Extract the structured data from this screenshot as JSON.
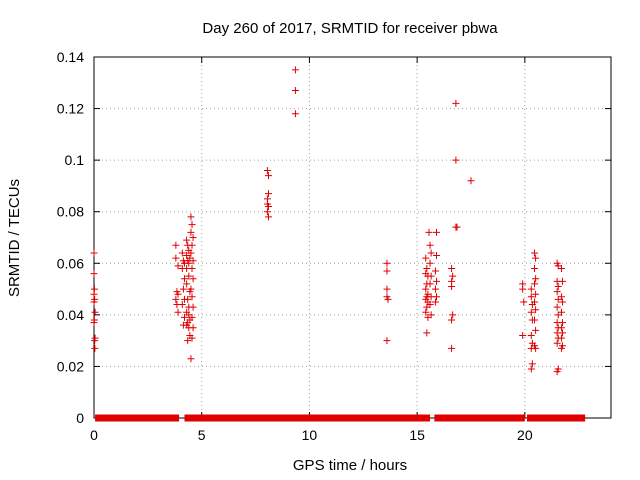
{
  "chart_data": {
    "type": "scatter",
    "title": "Day 260 of 2017, SRMTID for receiver pbwa",
    "xlabel": "GPS time / hours",
    "ylabel": "SRMTID / TECUs",
    "xlim": [
      0,
      24
    ],
    "ylim": [
      0,
      0.14
    ],
    "x_ticks": [
      0,
      5,
      10,
      15,
      20
    ],
    "y_ticks": [
      0,
      0.02,
      0.04,
      0.06,
      0.08,
      0.1,
      0.12,
      0.14
    ],
    "x_tick_labels": [
      "0",
      "5",
      "10",
      "15",
      "20"
    ],
    "y_tick_labels": [
      "0",
      "0.02",
      "0.04",
      "0.06",
      "0.08",
      "0.1",
      "0.12",
      "0.14"
    ],
    "grid": true,
    "marker": "plus",
    "color": "#e00000",
    "zero_line_segments": [
      [
        0.05,
        3.95
      ],
      [
        4.2,
        15.6
      ],
      [
        15.8,
        20.0
      ],
      [
        20.1,
        22.8
      ]
    ],
    "series": [
      {
        "name": "SRMTID",
        "points": [
          [
            0.0,
            0.064
          ],
          [
            0.0,
            0.056
          ],
          [
            0.02,
            0.05
          ],
          [
            0.0,
            0.048
          ],
          [
            0.03,
            0.046
          ],
          [
            0.0,
            0.045
          ],
          [
            0.05,
            0.041
          ],
          [
            0.02,
            0.038
          ],
          [
            0.0,
            0.037
          ],
          [
            0.05,
            0.031
          ],
          [
            0.03,
            0.03
          ],
          [
            0.04,
            0.027
          ],
          [
            3.8,
            0.067
          ],
          [
            3.8,
            0.062
          ],
          [
            3.9,
            0.059
          ],
          [
            3.85,
            0.049
          ],
          [
            3.9,
            0.048
          ],
          [
            3.8,
            0.046
          ],
          [
            3.85,
            0.044
          ],
          [
            3.9,
            0.041
          ],
          [
            4.1,
            0.064
          ],
          [
            4.15,
            0.061
          ],
          [
            4.2,
            0.06
          ],
          [
            4.1,
            0.058
          ],
          [
            4.2,
            0.054
          ],
          [
            4.15,
            0.05
          ],
          [
            4.2,
            0.046
          ],
          [
            4.1,
            0.044
          ],
          [
            4.2,
            0.039
          ],
          [
            4.15,
            0.036
          ],
          [
            4.3,
            0.069
          ],
          [
            4.35,
            0.067
          ],
          [
            4.4,
            0.065
          ],
          [
            4.3,
            0.063
          ],
          [
            4.45,
            0.062
          ],
          [
            4.35,
            0.061
          ],
          [
            4.4,
            0.06
          ],
          [
            4.3,
            0.058
          ],
          [
            4.4,
            0.055
          ],
          [
            4.3,
            0.052
          ],
          [
            4.45,
            0.049
          ],
          [
            4.35,
            0.046
          ],
          [
            4.4,
            0.043
          ],
          [
            4.3,
            0.041
          ],
          [
            4.4,
            0.04
          ],
          [
            4.45,
            0.038
          ],
          [
            4.35,
            0.037
          ],
          [
            4.3,
            0.036
          ],
          [
            4.4,
            0.035
          ],
          [
            4.45,
            0.032
          ],
          [
            4.35,
            0.03
          ],
          [
            4.5,
            0.078
          ],
          [
            4.55,
            0.075
          ],
          [
            4.5,
            0.072
          ],
          [
            4.6,
            0.07
          ],
          [
            4.55,
            0.067
          ],
          [
            4.5,
            0.064
          ],
          [
            4.6,
            0.061
          ],
          [
            4.55,
            0.058
          ],
          [
            4.6,
            0.054
          ],
          [
            4.5,
            0.05
          ],
          [
            4.55,
            0.047
          ],
          [
            4.6,
            0.043
          ],
          [
            4.55,
            0.039
          ],
          [
            4.6,
            0.035
          ],
          [
            4.55,
            0.031
          ],
          [
            4.5,
            0.023
          ],
          [
            8.05,
            0.096
          ],
          [
            8.1,
            0.094
          ],
          [
            8.1,
            0.087
          ],
          [
            8.05,
            0.085
          ],
          [
            8.05,
            0.083
          ],
          [
            8.1,
            0.082
          ],
          [
            8.05,
            0.08
          ],
          [
            8.1,
            0.078
          ],
          [
            9.35,
            0.135
          ],
          [
            9.35,
            0.127
          ],
          [
            9.35,
            0.118
          ],
          [
            13.6,
            0.06
          ],
          [
            13.6,
            0.057
          ],
          [
            13.6,
            0.05
          ],
          [
            13.6,
            0.047
          ],
          [
            13.65,
            0.046
          ],
          [
            13.6,
            0.03
          ],
          [
            15.4,
            0.062
          ],
          [
            15.45,
            0.058
          ],
          [
            15.4,
            0.056
          ],
          [
            15.5,
            0.055
          ],
          [
            15.45,
            0.052
          ],
          [
            15.4,
            0.05
          ],
          [
            15.5,
            0.048
          ],
          [
            15.45,
            0.047
          ],
          [
            15.4,
            0.046
          ],
          [
            15.5,
            0.045
          ],
          [
            15.45,
            0.043
          ],
          [
            15.4,
            0.041
          ],
          [
            15.5,
            0.039
          ],
          [
            15.45,
            0.033
          ],
          [
            15.55,
            0.072
          ],
          [
            15.6,
            0.067
          ],
          [
            15.65,
            0.064
          ],
          [
            15.6,
            0.06
          ],
          [
            15.65,
            0.055
          ],
          [
            15.6,
            0.052
          ],
          [
            15.65,
            0.047
          ],
          [
            15.6,
            0.044
          ],
          [
            15.65,
            0.04
          ],
          [
            15.9,
            0.072
          ],
          [
            15.9,
            0.063
          ],
          [
            15.85,
            0.057
          ],
          [
            15.9,
            0.053
          ],
          [
            15.85,
            0.05
          ],
          [
            15.9,
            0.047
          ],
          [
            15.85,
            0.045
          ],
          [
            16.6,
            0.058
          ],
          [
            16.65,
            0.055
          ],
          [
            16.6,
            0.053
          ],
          [
            16.6,
            0.051
          ],
          [
            16.65,
            0.04
          ],
          [
            16.6,
            0.038
          ],
          [
            16.6,
            0.027
          ],
          [
            16.8,
            0.122
          ],
          [
            16.8,
            0.1
          ],
          [
            16.8,
            0.074
          ],
          [
            16.85,
            0.074
          ],
          [
            17.5,
            0.092
          ],
          [
            19.9,
            0.052
          ],
          [
            19.9,
            0.05
          ],
          [
            19.95,
            0.045
          ],
          [
            19.9,
            0.032
          ],
          [
            20.3,
            0.05
          ],
          [
            20.3,
            0.047
          ],
          [
            20.35,
            0.044
          ],
          [
            20.3,
            0.041
          ],
          [
            20.35,
            0.038
          ],
          [
            20.3,
            0.032
          ],
          [
            20.35,
            0.029
          ],
          [
            20.3,
            0.027
          ],
          [
            20.35,
            0.021
          ],
          [
            20.3,
            0.019
          ],
          [
            20.45,
            0.064
          ],
          [
            20.5,
            0.062
          ],
          [
            20.45,
            0.058
          ],
          [
            20.5,
            0.054
          ],
          [
            20.45,
            0.052
          ],
          [
            20.5,
            0.048
          ],
          [
            20.45,
            0.045
          ],
          [
            20.5,
            0.042
          ],
          [
            20.45,
            0.038
          ],
          [
            20.5,
            0.034
          ],
          [
            20.45,
            0.028
          ],
          [
            20.5,
            0.027
          ],
          [
            21.5,
            0.06
          ],
          [
            21.55,
            0.059
          ],
          [
            21.5,
            0.053
          ],
          [
            21.55,
            0.051
          ],
          [
            21.5,
            0.049
          ],
          [
            21.55,
            0.046
          ],
          [
            21.5,
            0.043
          ],
          [
            21.55,
            0.04
          ],
          [
            21.5,
            0.037
          ],
          [
            21.55,
            0.035
          ],
          [
            21.5,
            0.033
          ],
          [
            21.55,
            0.031
          ],
          [
            21.5,
            0.029
          ],
          [
            21.55,
            0.019
          ],
          [
            21.5,
            0.018
          ],
          [
            21.7,
            0.058
          ],
          [
            21.75,
            0.053
          ],
          [
            21.7,
            0.047
          ],
          [
            21.75,
            0.045
          ],
          [
            21.7,
            0.041
          ],
          [
            21.75,
            0.037
          ],
          [
            21.7,
            0.035
          ],
          [
            21.75,
            0.033
          ],
          [
            21.7,
            0.031
          ],
          [
            21.75,
            0.028
          ],
          [
            21.7,
            0.027
          ]
        ]
      }
    ]
  }
}
